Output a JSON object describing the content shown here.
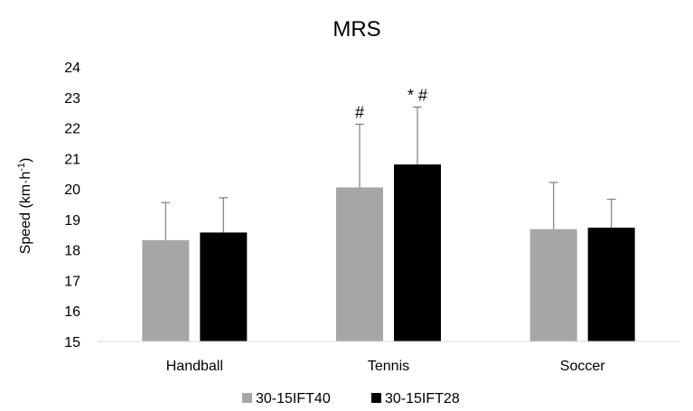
{
  "chart_data": {
    "type": "bar",
    "title": "MRS",
    "ylabel": "Speed  (km·h",
    "ylabel_sup": "-1",
    "ylabel_close": ")",
    "xlabel": "",
    "ylim": [
      15,
      24
    ],
    "yticks": [
      15,
      16,
      17,
      18,
      19,
      20,
      21,
      22,
      23,
      24
    ],
    "grid": false,
    "legend_position": "bottom",
    "categories": [
      "Handball",
      "Tennis",
      "Soccer"
    ],
    "series": [
      {
        "name": "30-15IFT40",
        "color": "#a6a6a6",
        "values": [
          18.32,
          20.05,
          18.68
        ],
        "errors": [
          1.23,
          2.07,
          1.53
        ],
        "annotations": [
          "",
          "#",
          ""
        ]
      },
      {
        "name": "30-15IFT28",
        "color": "#000000",
        "values": [
          18.57,
          20.8,
          18.73
        ],
        "errors": [
          1.14,
          1.88,
          0.93
        ],
        "annotations": [
          "",
          "* #",
          ""
        ]
      }
    ]
  }
}
